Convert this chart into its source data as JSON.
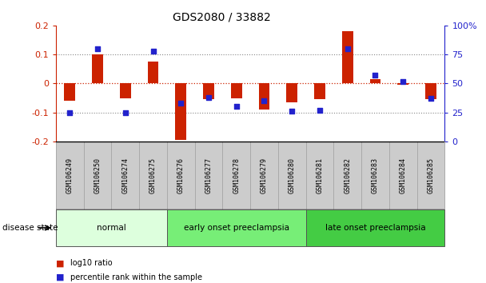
{
  "title": "GDS2080 / 33882",
  "samples": [
    "GSM106249",
    "GSM106250",
    "GSM106274",
    "GSM106275",
    "GSM106276",
    "GSM106277",
    "GSM106278",
    "GSM106279",
    "GSM106280",
    "GSM106281",
    "GSM106282",
    "GSM106283",
    "GSM106284",
    "GSM106285"
  ],
  "log10_ratio": [
    -0.06,
    0.1,
    -0.05,
    0.075,
    -0.195,
    -0.055,
    -0.05,
    -0.09,
    -0.065,
    -0.055,
    0.18,
    0.015,
    -0.005,
    -0.055
  ],
  "percentile_rank": [
    25,
    80,
    25,
    78,
    33,
    38,
    30,
    35,
    26,
    27,
    80,
    57,
    52,
    37
  ],
  "bar_color": "#cc2200",
  "dot_color": "#2222cc",
  "groups": [
    {
      "label": "normal",
      "start": 0,
      "end": 4,
      "color": "#ddffdd"
    },
    {
      "label": "early onset preeclampsia",
      "start": 4,
      "end": 9,
      "color": "#77ee77"
    },
    {
      "label": "late onset preeclampsia",
      "start": 9,
      "end": 14,
      "color": "#44cc44"
    }
  ],
  "ylim_left": [
    -0.2,
    0.2
  ],
  "ylim_right": [
    0,
    100
  ],
  "yticks_left": [
    -0.2,
    -0.1,
    0.0,
    0.1,
    0.2
  ],
  "yticks_right": [
    0,
    25,
    50,
    75,
    100
  ],
  "legend_items": [
    "log10 ratio",
    "percentile rank within the sample"
  ],
  "disease_state_label": "disease state",
  "background_color": "#ffffff",
  "label_bg_color": "#cccccc"
}
